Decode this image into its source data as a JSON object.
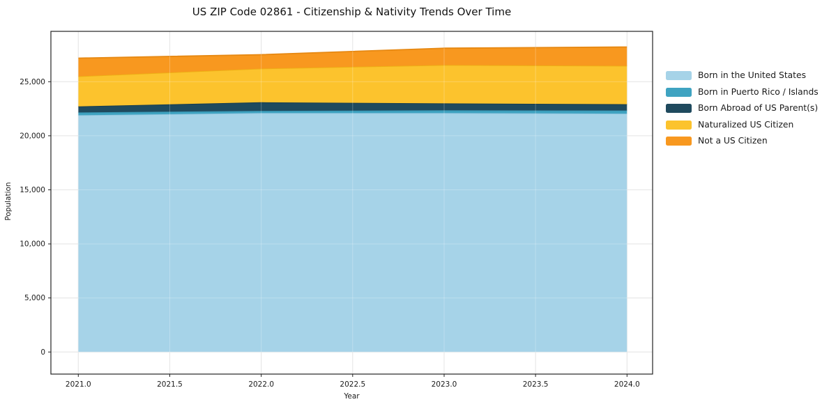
{
  "page": {
    "background": "#ffffff",
    "text_color": "#1a1a1a"
  },
  "chart_data": {
    "type": "area",
    "stacked": true,
    "title": "US ZIP Code 02861 - Citizenship & Nativity Trends Over Time",
    "xlabel": "Year",
    "ylabel": "Population",
    "x": [
      2021,
      2022,
      2023,
      2024
    ],
    "series": [
      {
        "name": "Born in the United States",
        "color": "#a6d3e8",
        "edge_color": "#8fc4de",
        "values": [
          21900,
          22100,
          22100,
          22050
        ]
      },
      {
        "name": "Born in Puerto Rico / Islands",
        "color": "#3fa3c1",
        "edge_color": "#3690ad",
        "values": [
          260,
          210,
          260,
          290
        ]
      },
      {
        "name": "Born Abroad of US Parent(s)",
        "color": "#1f4a5e",
        "edge_color": "#173c4d",
        "values": [
          560,
          790,
          640,
          580
        ]
      },
      {
        "name": "Naturalized US Citizen",
        "color": "#fcc32d",
        "edge_color": "#edb014",
        "values": [
          2780,
          3110,
          3540,
          3550
        ]
      },
      {
        "name": "Not a US Citizen",
        "color": "#f8981f",
        "edge_color": "#e68812",
        "values": [
          1680,
          1290,
          1560,
          1740
        ]
      }
    ],
    "stack_totals": [
      27180,
      27500,
      28100,
      28210
    ],
    "xticks": {
      "values": [
        2021,
        2021.5,
        2022,
        2022.5,
        2023,
        2023.5,
        2024
      ],
      "labels": [
        "2021.0",
        "2021.5",
        "2022.0",
        "2022.5",
        "2023.0",
        "2023.5",
        "2024.0"
      ]
    },
    "yticks": {
      "values": [
        0,
        5000,
        10000,
        15000,
        20000,
        25000
      ],
      "labels": [
        "0",
        "5,000",
        "10,000",
        "15,000",
        "20,000",
        "25,000"
      ]
    },
    "xlim": [
      2020.85,
      2024.14
    ],
    "ylim": [
      -2040,
      29660
    ],
    "grid": true,
    "grid_color": "#dcdcdc",
    "spine_color": "#222222",
    "legend_position": "right"
  }
}
